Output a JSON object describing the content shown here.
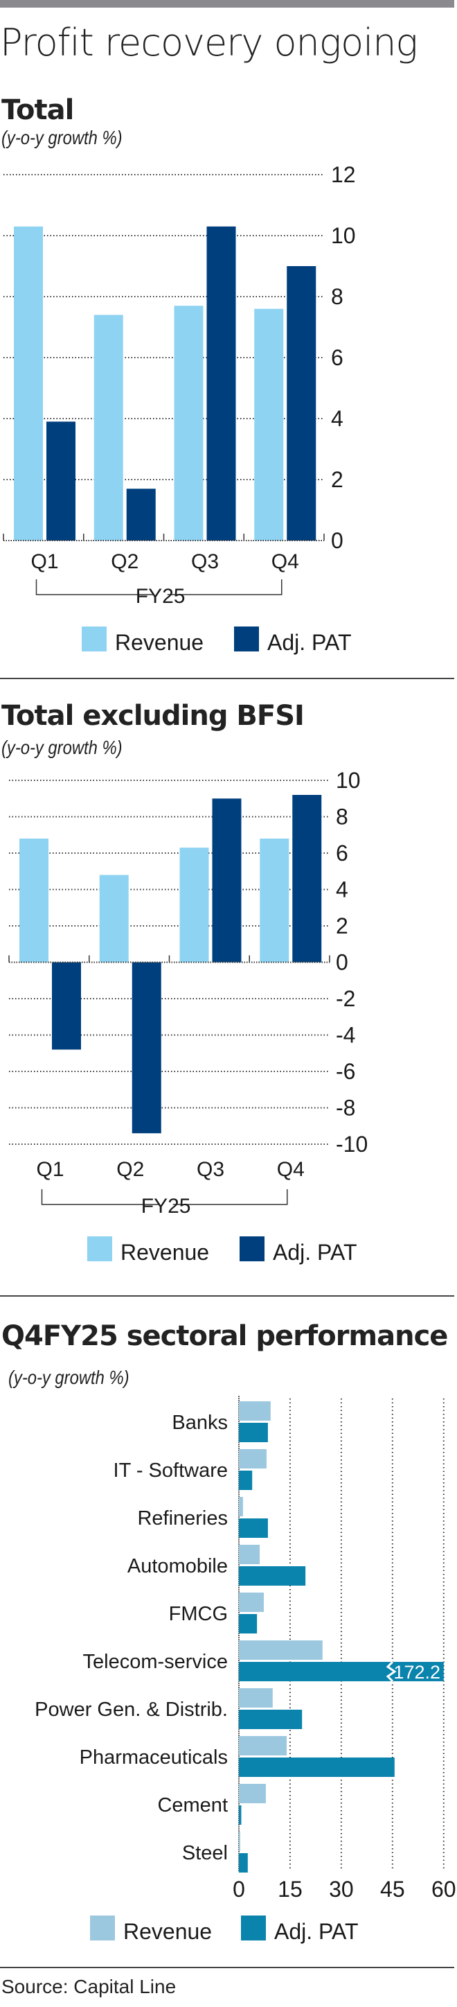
{
  "title": "Profit recovery ongoing",
  "source": "Source: Capital Line",
  "colors": {
    "revenue_light": "#8fd3f2",
    "pat_dark": "#003f7d",
    "sector_revenue": "#9cc8df",
    "sector_pat": "#0a83ad"
  },
  "chart_data": [
    {
      "type": "bar",
      "title": "Total",
      "subtitle": "(y-o-y growth %)",
      "categories": [
        "Q1",
        "Q2",
        "Q3",
        "Q4"
      ],
      "group_label": "FY25",
      "series": [
        {
          "name": "Revenue",
          "values": [
            10.3,
            7.4,
            7.7,
            7.6
          ]
        },
        {
          "name": "Adj. PAT",
          "values": [
            3.9,
            1.7,
            10.3,
            9.0
          ]
        }
      ],
      "ylim": [
        0,
        12
      ],
      "yticks": [
        0,
        2,
        4,
        6,
        8,
        10,
        12
      ],
      "ytick_labels": [
        "0",
        "2",
        "4",
        "6",
        "8",
        "10",
        "12"
      ],
      "grid": true,
      "y_axis_side": "right",
      "legend": [
        "Revenue",
        "Adj. PAT"
      ],
      "legend_position": "bottom"
    },
    {
      "type": "bar",
      "title": "Total excluding BFSI",
      "subtitle": "(y-o-y growth %)",
      "categories": [
        "Q1",
        "Q2",
        "Q3",
        "Q4"
      ],
      "group_label": "FY25",
      "series": [
        {
          "name": "Revenue",
          "values": [
            6.8,
            4.8,
            6.3,
            6.8
          ]
        },
        {
          "name": "Adj. PAT",
          "values": [
            -4.8,
            -9.4,
            9.0,
            9.2
          ]
        }
      ],
      "ylim": [
        -10,
        10
      ],
      "yticks": [
        -10,
        -8,
        -6,
        -4,
        -2,
        0,
        2,
        4,
        6,
        8,
        10
      ],
      "ytick_labels": [
        "-10",
        "-8",
        "-6",
        "-4",
        "-2",
        "0",
        "2",
        "4",
        "6",
        "8",
        "10"
      ],
      "grid": true,
      "y_axis_side": "right",
      "legend": [
        "Revenue",
        "Adj. PAT"
      ],
      "legend_position": "bottom"
    },
    {
      "type": "bar",
      "orientation": "horizontal",
      "title": "Q4FY25 sectoral performance",
      "subtitle": "(y-o-y growth %)",
      "categories": [
        "Banks",
        "IT - Software",
        "Refineries",
        "Automobile",
        "FMCG",
        "Telecom-service",
        "Power Gen. & Distrib.",
        "Pharmaceuticals",
        "Cement",
        "Steel"
      ],
      "series": [
        {
          "name": "Revenue",
          "values": [
            9.3,
            8.1,
            1.2,
            6.1,
            7.3,
            24.5,
            9.9,
            14.0,
            7.9,
            0.4
          ]
        },
        {
          "name": "Adj. PAT",
          "values": [
            8.5,
            3.9,
            8.5,
            19.5,
            5.3,
            172.2,
            18.5,
            45.6,
            0.7,
            2.6
          ]
        }
      ],
      "annotations": [
        {
          "category": "Telecom-service",
          "series": "Adj. PAT",
          "text": "172.2",
          "note": "axis break"
        }
      ],
      "xlim": [
        0,
        60
      ],
      "xticks": [
        0,
        15,
        30,
        45,
        60
      ],
      "xtick_labels": [
        "0",
        "15",
        "30",
        "45",
        "60"
      ],
      "grid": true,
      "legend": [
        "Revenue",
        "Adj. PAT"
      ],
      "legend_position": "bottom"
    }
  ]
}
